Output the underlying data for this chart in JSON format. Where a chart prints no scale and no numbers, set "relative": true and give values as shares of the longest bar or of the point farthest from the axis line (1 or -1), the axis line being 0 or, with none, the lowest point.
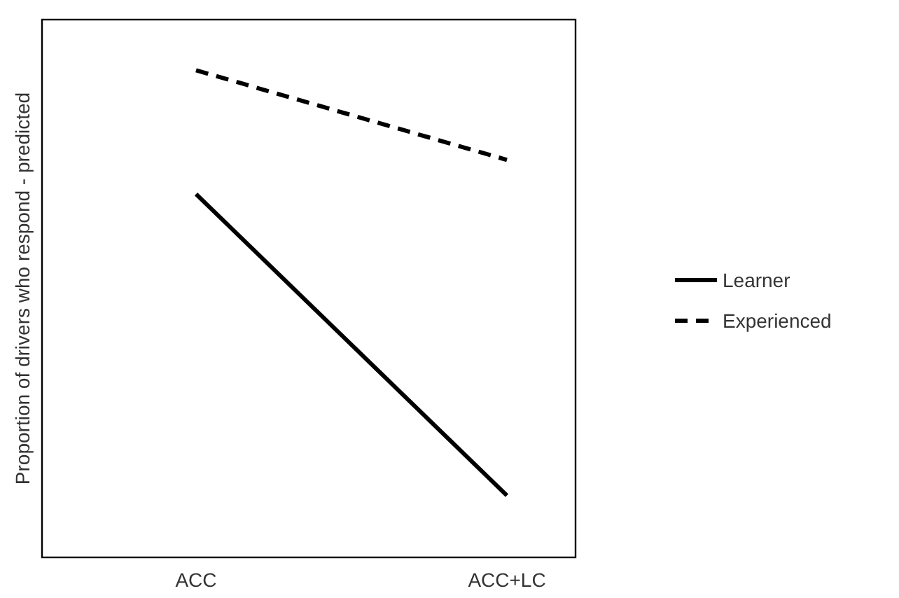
{
  "chart_data": {
    "type": "line",
    "ylabel": "Proportion of drivers who respond - predicted",
    "categories": [
      "ACC",
      "ACC+LC"
    ],
    "relative": true,
    "legend": "right",
    "marker": "none",
    "series": [
      {
        "name": "Learner",
        "color": "#000000",
        "line_style": "solid",
        "values": [
          0.746,
          0.127
        ]
      },
      {
        "name": "Experienced",
        "color": "#000000",
        "line_style": "dashed",
        "values": [
          1,
          0.816
        ]
      }
    ]
  }
}
